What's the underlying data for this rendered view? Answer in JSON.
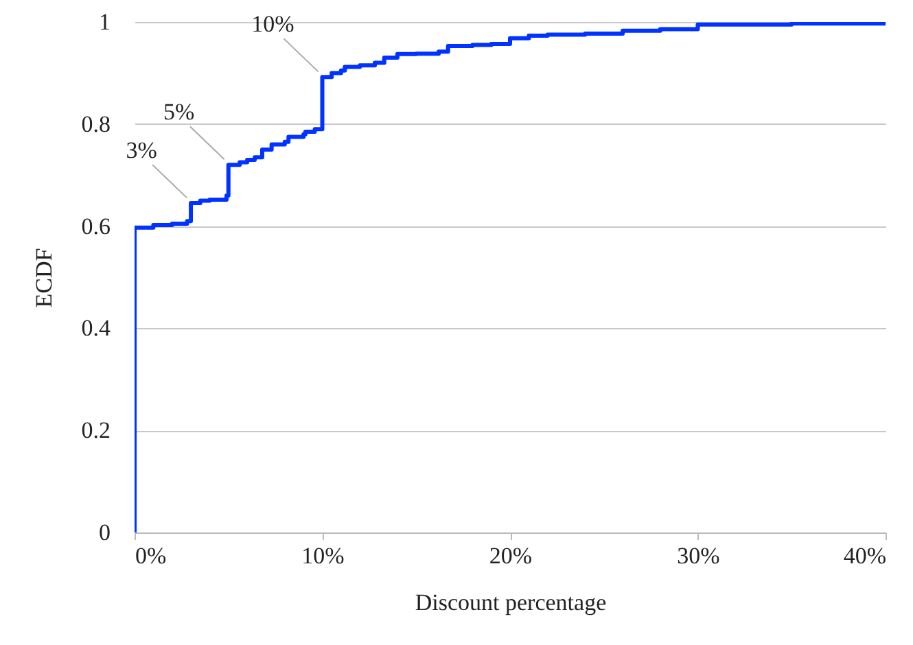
{
  "chart_data": {
    "type": "step",
    "xlabel": "Discount percentage",
    "ylabel": "ECDF",
    "x": [
      0,
      0,
      1,
      2,
      2.8,
      3,
      3.5,
      4,
      4.9,
      5,
      5.6,
      6,
      6.4,
      6.8,
      7.3,
      8,
      8.2,
      9,
      9.1,
      9.6,
      10,
      10.5,
      11,
      11.2,
      12,
      12.8,
      13.3,
      14,
      15,
      16.2,
      16.7,
      18,
      19,
      20,
      21,
      22,
      24,
      26,
      28,
      30,
      35,
      40
    ],
    "series": [
      {
        "color": "#0033ff",
        "values": [
          0,
          0.597,
          0.602,
          0.605,
          0.61,
          0.645,
          0.65,
          0.652,
          0.66,
          0.72,
          0.725,
          0.73,
          0.735,
          0.75,
          0.76,
          0.765,
          0.775,
          0.78,
          0.785,
          0.79,
          0.892,
          0.9,
          0.905,
          0.912,
          0.915,
          0.92,
          0.93,
          0.937,
          0.938,
          0.942,
          0.953,
          0.955,
          0.957,
          0.968,
          0.973,
          0.975,
          0.977,
          0.983,
          0.986,
          0.995,
          0.997,
          1
        ]
      }
    ],
    "xlim": [
      0,
      40
    ],
    "ylim": [
      0,
      1
    ],
    "xticks": [
      {
        "value": 0,
        "label": "0%"
      },
      {
        "value": 10,
        "label": "10%"
      },
      {
        "value": 20,
        "label": "20%"
      },
      {
        "value": 30,
        "label": "30%"
      },
      {
        "value": 40,
        "label": "40%"
      }
    ],
    "yticks": [
      0,
      0.2,
      0.4,
      0.6,
      0.8,
      1
    ],
    "grid": "y",
    "marker": "none",
    "line_style": "solid",
    "annotations": [
      {
        "text": "3%",
        "x": 3,
        "y": 0.645
      },
      {
        "text": "5%",
        "x": 5,
        "y": 0.72
      },
      {
        "text": "10%",
        "x": 10,
        "y": 0.892
      }
    ]
  }
}
